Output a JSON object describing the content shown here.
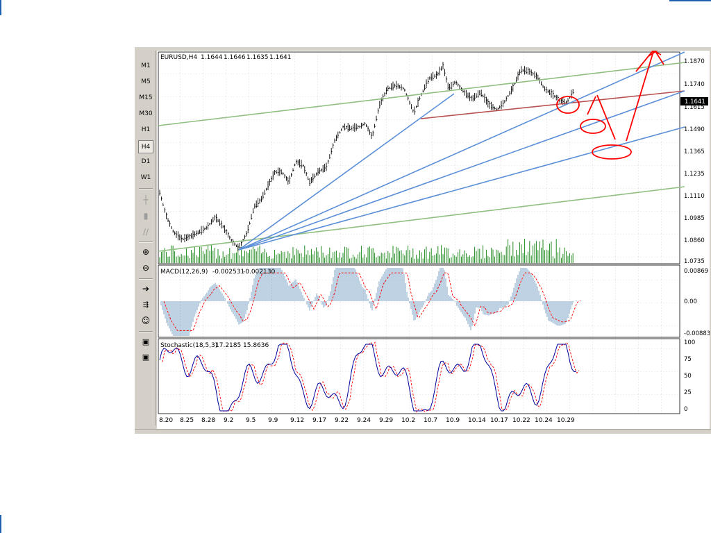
{
  "symbol_header": "EURUSD,H4",
  "ohlc": [
    "1.1644",
    "1.1646",
    "1.1635",
    "1.1641"
  ],
  "current_price": "1.1641",
  "timeframes": [
    "M1",
    "M5",
    "M15",
    "M30",
    "H1",
    "H4",
    "D1",
    "W1"
  ],
  "active_timeframe": "H4",
  "toolbar_icons": [
    "crosshair-icon",
    "candlestick-icon",
    "line-chart-icon",
    "zoom-in-icon",
    "zoom-out-icon",
    "autoscroll-icon",
    "chart-shift-icon",
    "expert-advisor-icon",
    "indicator-window-icon",
    "template-icon"
  ],
  "price_axis": [
    "1.1870",
    "1.1740",
    "1.1615",
    "1.1490",
    "1.1365",
    "1.1235",
    "1.1110",
    "1.0985",
    "1.0860",
    "1.0735"
  ],
  "macd": {
    "label": "MACD(12,26,9)",
    "main": "-0.002531",
    "signal": "-0.002130",
    "axis": [
      "0.00869",
      "0.00",
      "-0.00883"
    ]
  },
  "stochastic": {
    "label": "Stochastic(18,5,3)",
    "k": "17.2185",
    "d": "15.8636",
    "axis": [
      "100",
      "75",
      "50",
      "25",
      "0"
    ]
  },
  "date_axis": [
    "8.20",
    "8.25",
    "8.28",
    "9.2",
    "9.5",
    "9.9",
    "9.12",
    "9.17",
    "9.22",
    "9.24",
    "9.29",
    "10.2",
    "10.7",
    "10.9",
    "10.14",
    "10.17",
    "10.22",
    "10.24",
    "10.29"
  ],
  "colors": {
    "bull_volume": "#1e8a1e",
    "trendline_blue": "#5b8fd8",
    "trendline_green": "#8fbf80",
    "trendline_red": "#b85050",
    "annotation_red": "#ff0000",
    "macd_histogram": "#7ea6c8",
    "signal_red": "#ff0000",
    "stoch_main": "#00009c",
    "price_tag_bg": "#000000"
  }
}
